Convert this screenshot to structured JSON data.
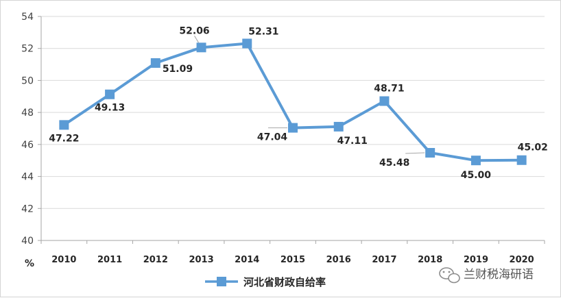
{
  "chart_data": {
    "type": "line",
    "title": "",
    "xlabel": "",
    "ylabel": "%",
    "x": [
      "2010",
      "2011",
      "2012",
      "2013",
      "2014",
      "2015",
      "2016",
      "2017",
      "2018",
      "2019",
      "2020"
    ],
    "series": [
      {
        "name": "河北省财政自给率",
        "values": [
          47.22,
          49.13,
          51.09,
          52.06,
          52.31,
          47.04,
          47.11,
          48.71,
          45.48,
          45.0,
          45.02
        ],
        "labels": [
          "47.22",
          "49.13",
          "51.09",
          "52.06",
          "52.31",
          "47.04",
          "47.11",
          "48.71",
          "45.48",
          "45.00",
          "45.02"
        ]
      }
    ],
    "ylim": [
      40,
      54
    ],
    "yticks": [
      "40",
      "42",
      "44",
      "46",
      "48",
      "50",
      "52",
      "54"
    ],
    "grid": true,
    "legend": "bottom",
    "line_color": "#5b9bd5"
  },
  "watermark": {
    "text": "兰财税海研语",
    "icon": "wechat-icon"
  }
}
